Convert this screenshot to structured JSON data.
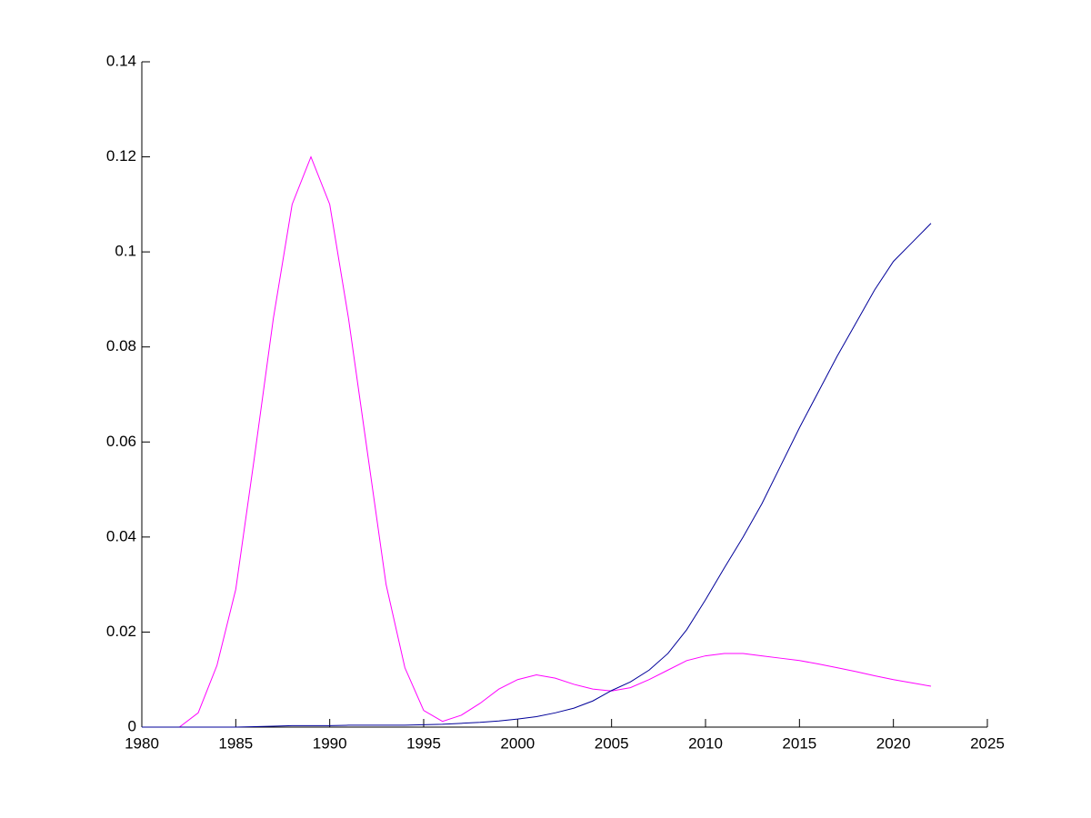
{
  "chart_data": {
    "type": "line",
    "x": [
      1980,
      1981,
      1982,
      1983,
      1984,
      1985,
      1986,
      1987,
      1988,
      1989,
      1990,
      1991,
      1992,
      1993,
      1994,
      1995,
      1996,
      1997,
      1998,
      1999,
      2000,
      2001,
      2002,
      2003,
      2004,
      2005,
      2006,
      2007,
      2008,
      2009,
      2010,
      2011,
      2012,
      2013,
      2014,
      2015,
      2016,
      2017,
      2018,
      2019,
      2020,
      2021,
      2022
    ],
    "series": [
      {
        "color": "#ff00ff",
        "values": [
          0,
          0,
          0,
          0.003,
          0.013,
          0.029,
          0.057,
          0.086,
          0.11,
          0.12,
          0.11,
          0.086,
          0.058,
          0.03,
          0.0125,
          0.0035,
          0.0012,
          0.0025,
          0.005,
          0.008,
          0.01,
          0.011,
          0.0103,
          0.009,
          0.008,
          0.0076,
          0.0083,
          0.01,
          0.012,
          0.014,
          0.015,
          0.0155,
          0.0155,
          0.015,
          0.0145,
          0.014,
          0.0133,
          0.0125,
          0.0117,
          0.0108,
          0.01,
          0.0093,
          0.0086
        ]
      },
      {
        "color": "#000099",
        "values": [
          0,
          0,
          0,
          0,
          0,
          0,
          0.0001,
          0.0002,
          0.0003,
          0.0003,
          0.0003,
          0.0004,
          0.0004,
          0.0004,
          0.0004,
          0.0005,
          0.0006,
          0.0008,
          0.001,
          0.0013,
          0.0017,
          0.0022,
          0.003,
          0.004,
          0.0055,
          0.0077,
          0.0095,
          0.012,
          0.0155,
          0.0205,
          0.0268,
          0.0335,
          0.04,
          0.047,
          0.055,
          0.063,
          0.0705,
          0.078,
          0.085,
          0.092,
          0.098,
          0.102,
          0.106
        ]
      }
    ],
    "xlim": [
      1980,
      2025
    ],
    "xticks": [
      1980,
      1985,
      1990,
      1995,
      2000,
      2005,
      2010,
      2015,
      2020,
      2025
    ],
    "ylim": [
      0,
      0.14
    ],
    "yticks": [
      0,
      0.02,
      0.04,
      0.06,
      0.08,
      0.1,
      0.12,
      0.14
    ]
  }
}
